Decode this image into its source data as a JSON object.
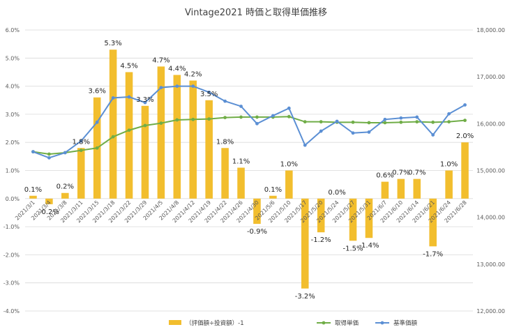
{
  "chart_data": {
    "type": "bar+line",
    "title": "Vintage2021 時価と取得単価推移",
    "categories": [
      "2021/3/1",
      "2021/3/4",
      "2021/3/8",
      "2021/3/11",
      "2021/3/15",
      "2021/3/18",
      "2021/3/22",
      "2021/3/29",
      "2021/4/5",
      "2021/4/8",
      "2021/4/12",
      "2021/4/19",
      "2021/4/22",
      "2021/4/26",
      "2021/4/30",
      "2021/5/6",
      "2021/5/10",
      "2021/5/17",
      "2021/5/20",
      "2021/5/24",
      "2021/5/27",
      "2021/5/31",
      "2021/6/7",
      "2021/6/10",
      "2021/6/14",
      "2021/6/21",
      "2021/6/24",
      "2021/6/28"
    ],
    "left_axis": {
      "min": -4.0,
      "max": 6.0,
      "step": 1.0,
      "tick_labels": [
        "-4.0%",
        "-3.0%",
        "-2.0%",
        "-1.0%",
        "0.0%",
        "1.0%",
        "2.0%",
        "3.0%",
        "4.0%",
        "5.0%",
        "6.0%"
      ]
    },
    "right_axis": {
      "min": 12000,
      "max": 18000,
      "step": 1000,
      "tick_labels": [
        "12,000.00",
        "13,000.00",
        "14,000.00",
        "15,000.00",
        "16,000.00",
        "17,000.00",
        "18,000.00"
      ]
    },
    "series": [
      {
        "name": "（評価額÷投資額）-1",
        "type": "bar",
        "axis": "left",
        "color": "#F2BE2E",
        "values": [
          0.1,
          -0.2,
          0.2,
          1.8,
          3.6,
          5.3,
          4.5,
          3.3,
          4.7,
          4.4,
          4.2,
          3.5,
          1.8,
          1.1,
          -0.9,
          0.1,
          1.0,
          -3.2,
          -1.2,
          0.0,
          -1.5,
          -1.4,
          0.6,
          0.7,
          0.7,
          -1.7,
          1.0,
          2.0
        ],
        "labels": [
          "0.1%",
          "-0.2%",
          "0.2%",
          "1.8%",
          "3.6%",
          "5.3%",
          "4.5%",
          "3.3%",
          "4.7%",
          "4.4%",
          "4.2%",
          "3.5%",
          "1.8%",
          "1.1%",
          "-0.9%",
          "0.1%",
          "1.0%",
          "-3.2%",
          "-1.2%",
          "0.0%",
          "-1.5%",
          "-1.4%",
          "0.6%",
          "0.7%",
          "0.7%",
          "-1.7%",
          "1.0%",
          "2.0%"
        ]
      },
      {
        "name": "取得単価",
        "type": "line",
        "axis": "right",
        "color": "#70AD47",
        "values": [
          15400,
          15350,
          15380,
          15430,
          15480,
          15720,
          15860,
          15960,
          16010,
          16080,
          16090,
          16100,
          16130,
          16140,
          16140,
          16140,
          16150,
          16040,
          16040,
          16030,
          16030,
          16020,
          16020,
          16030,
          16040,
          16030,
          16040,
          16070
        ]
      },
      {
        "name": "基準価額",
        "type": "line",
        "axis": "right",
        "color": "#5B8FD4",
        "values": [
          15400,
          15270,
          15380,
          15630,
          16030,
          16550,
          16570,
          16450,
          16770,
          16800,
          16800,
          16670,
          16480,
          16370,
          16000,
          16170,
          16330,
          15540,
          15840,
          16050,
          15800,
          15820,
          16090,
          16120,
          16140,
          15760,
          16210,
          16400
        ]
      }
    ],
    "legend_position": "bottom"
  }
}
